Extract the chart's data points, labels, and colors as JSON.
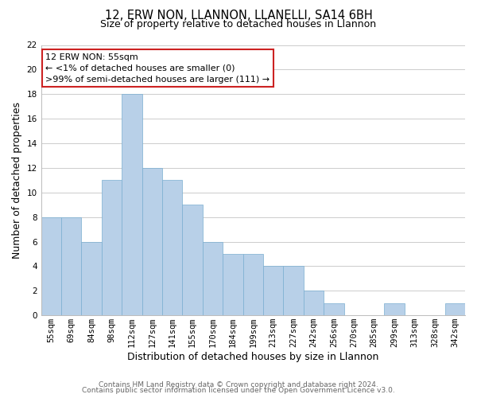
{
  "title_line1": "12, ERW NON, LLANNON, LLANELLI, SA14 6BH",
  "title_line2": "Size of property relative to detached houses in Llannon",
  "xlabel": "Distribution of detached houses by size in Llannon",
  "ylabel": "Number of detached properties",
  "categories": [
    "55sqm",
    "69sqm",
    "84sqm",
    "98sqm",
    "112sqm",
    "127sqm",
    "141sqm",
    "155sqm",
    "170sqm",
    "184sqm",
    "199sqm",
    "213sqm",
    "227sqm",
    "242sqm",
    "256sqm",
    "270sqm",
    "285sqm",
    "299sqm",
    "313sqm",
    "328sqm",
    "342sqm"
  ],
  "values": [
    8,
    8,
    6,
    11,
    18,
    12,
    11,
    9,
    6,
    5,
    5,
    4,
    4,
    2,
    1,
    0,
    0,
    1,
    0,
    0,
    1
  ],
  "bar_color": "#b8d0e8",
  "bar_edge_color": "#7aaed0",
  "annotation_box_text": "12 ERW NON: 55sqm\n← <1% of detached houses are smaller (0)\n>99% of semi-detached houses are larger (111) →",
  "annotation_edge_color": "#cc2222",
  "ylim": [
    0,
    22
  ],
  "yticks": [
    0,
    2,
    4,
    6,
    8,
    10,
    12,
    14,
    16,
    18,
    20,
    22
  ],
  "footer_line1": "Contains HM Land Registry data © Crown copyright and database right 2024.",
  "footer_line2": "Contains public sector information licensed under the Open Government Licence v3.0.",
  "grid_color": "#cccccc",
  "background_color": "#ffffff",
  "title1_fontsize": 10.5,
  "title2_fontsize": 9,
  "axis_label_fontsize": 9,
  "tick_fontsize": 7.5,
  "annotation_fontsize": 8,
  "footer_fontsize": 6.5
}
